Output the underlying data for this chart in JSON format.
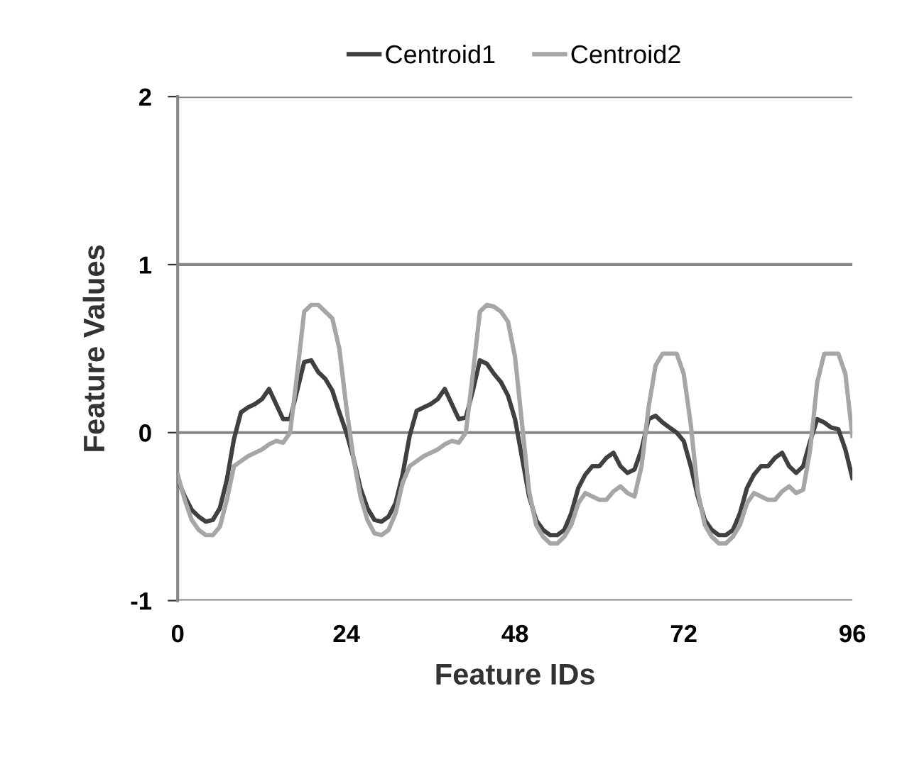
{
  "chart_data": {
    "type": "line",
    "xlabel": "Feature IDs",
    "ylabel": "Feature Values",
    "x": [
      0,
      1,
      2,
      3,
      4,
      5,
      6,
      7,
      8,
      9,
      10,
      11,
      12,
      13,
      14,
      15,
      16,
      17,
      18,
      19,
      20,
      21,
      22,
      23,
      24,
      25,
      26,
      27,
      28,
      29,
      30,
      31,
      32,
      33,
      34,
      35,
      36,
      37,
      38,
      39,
      40,
      41,
      42,
      43,
      44,
      45,
      46,
      47,
      48,
      49,
      50,
      51,
      52,
      53,
      54,
      55,
      56,
      57,
      58,
      59,
      60,
      61,
      62,
      63,
      64,
      65,
      66,
      67,
      68,
      69,
      70,
      71,
      72,
      73,
      74,
      75,
      76,
      77,
      78,
      79,
      80,
      81,
      82,
      83,
      84,
      85,
      86,
      87,
      88,
      89,
      90,
      91,
      92,
      93,
      94,
      95,
      96
    ],
    "series": [
      {
        "name": "Centroid1",
        "color": "#404040",
        "values": [
          -0.28,
          -0.38,
          -0.46,
          -0.5,
          -0.53,
          -0.52,
          -0.45,
          -0.28,
          -0.04,
          0.12,
          0.15,
          0.17,
          0.2,
          0.26,
          0.17,
          0.08,
          0.08,
          0.25,
          0.42,
          0.43,
          0.36,
          0.32,
          0.25,
          0.12,
          0.0,
          -0.15,
          -0.33,
          -0.45,
          -0.52,
          -0.53,
          -0.5,
          -0.42,
          -0.25,
          -0.02,
          0.13,
          0.15,
          0.17,
          0.2,
          0.26,
          0.17,
          0.08,
          0.09,
          0.25,
          0.43,
          0.41,
          0.35,
          0.3,
          0.22,
          0.08,
          -0.15,
          -0.38,
          -0.52,
          -0.58,
          -0.61,
          -0.61,
          -0.58,
          -0.48,
          -0.33,
          -0.25,
          -0.2,
          -0.2,
          -0.15,
          -0.12,
          -0.2,
          -0.24,
          -0.22,
          -0.1,
          0.08,
          0.1,
          0.06,
          0.03,
          0.0,
          -0.05,
          -0.2,
          -0.38,
          -0.52,
          -0.58,
          -0.61,
          -0.61,
          -0.58,
          -0.48,
          -0.33,
          -0.25,
          -0.2,
          -0.2,
          -0.15,
          -0.12,
          -0.2,
          -0.24,
          -0.2,
          -0.05,
          0.08,
          0.06,
          0.03,
          0.02,
          -0.1,
          -0.27
        ]
      },
      {
        "name": "Centroid2",
        "color": "#a6a6a6",
        "values": [
          -0.25,
          -0.4,
          -0.52,
          -0.58,
          -0.61,
          -0.61,
          -0.56,
          -0.4,
          -0.2,
          -0.17,
          -0.14,
          -0.12,
          -0.1,
          -0.07,
          -0.05,
          -0.06,
          0.0,
          0.35,
          0.72,
          0.76,
          0.76,
          0.72,
          0.68,
          0.5,
          0.15,
          -0.15,
          -0.38,
          -0.52,
          -0.6,
          -0.61,
          -0.58,
          -0.48,
          -0.3,
          -0.2,
          -0.17,
          -0.14,
          -0.12,
          -0.1,
          -0.07,
          -0.05,
          -0.06,
          0.0,
          0.35,
          0.72,
          0.76,
          0.75,
          0.72,
          0.66,
          0.45,
          0.05,
          -0.35,
          -0.55,
          -0.62,
          -0.66,
          -0.66,
          -0.62,
          -0.55,
          -0.42,
          -0.36,
          -0.38,
          -0.4,
          -0.4,
          -0.35,
          -0.32,
          -0.36,
          -0.38,
          -0.2,
          0.15,
          0.4,
          0.47,
          0.47,
          0.47,
          0.35,
          0.05,
          -0.35,
          -0.55,
          -0.62,
          -0.66,
          -0.66,
          -0.62,
          -0.55,
          -0.42,
          -0.36,
          -0.38,
          -0.4,
          -0.4,
          -0.35,
          -0.32,
          -0.36,
          -0.34,
          -0.1,
          0.3,
          0.47,
          0.47,
          0.47,
          0.35,
          -0.02
        ]
      }
    ],
    "xlim": [
      0,
      96
    ],
    "xticks": [
      0,
      24,
      48,
      72,
      96
    ],
    "ylim": [
      -1,
      2
    ],
    "yticks": [
      -1,
      0,
      1,
      2
    ],
    "grid": "y",
    "legend": "top",
    "marker": "none",
    "line_style": "solid"
  }
}
